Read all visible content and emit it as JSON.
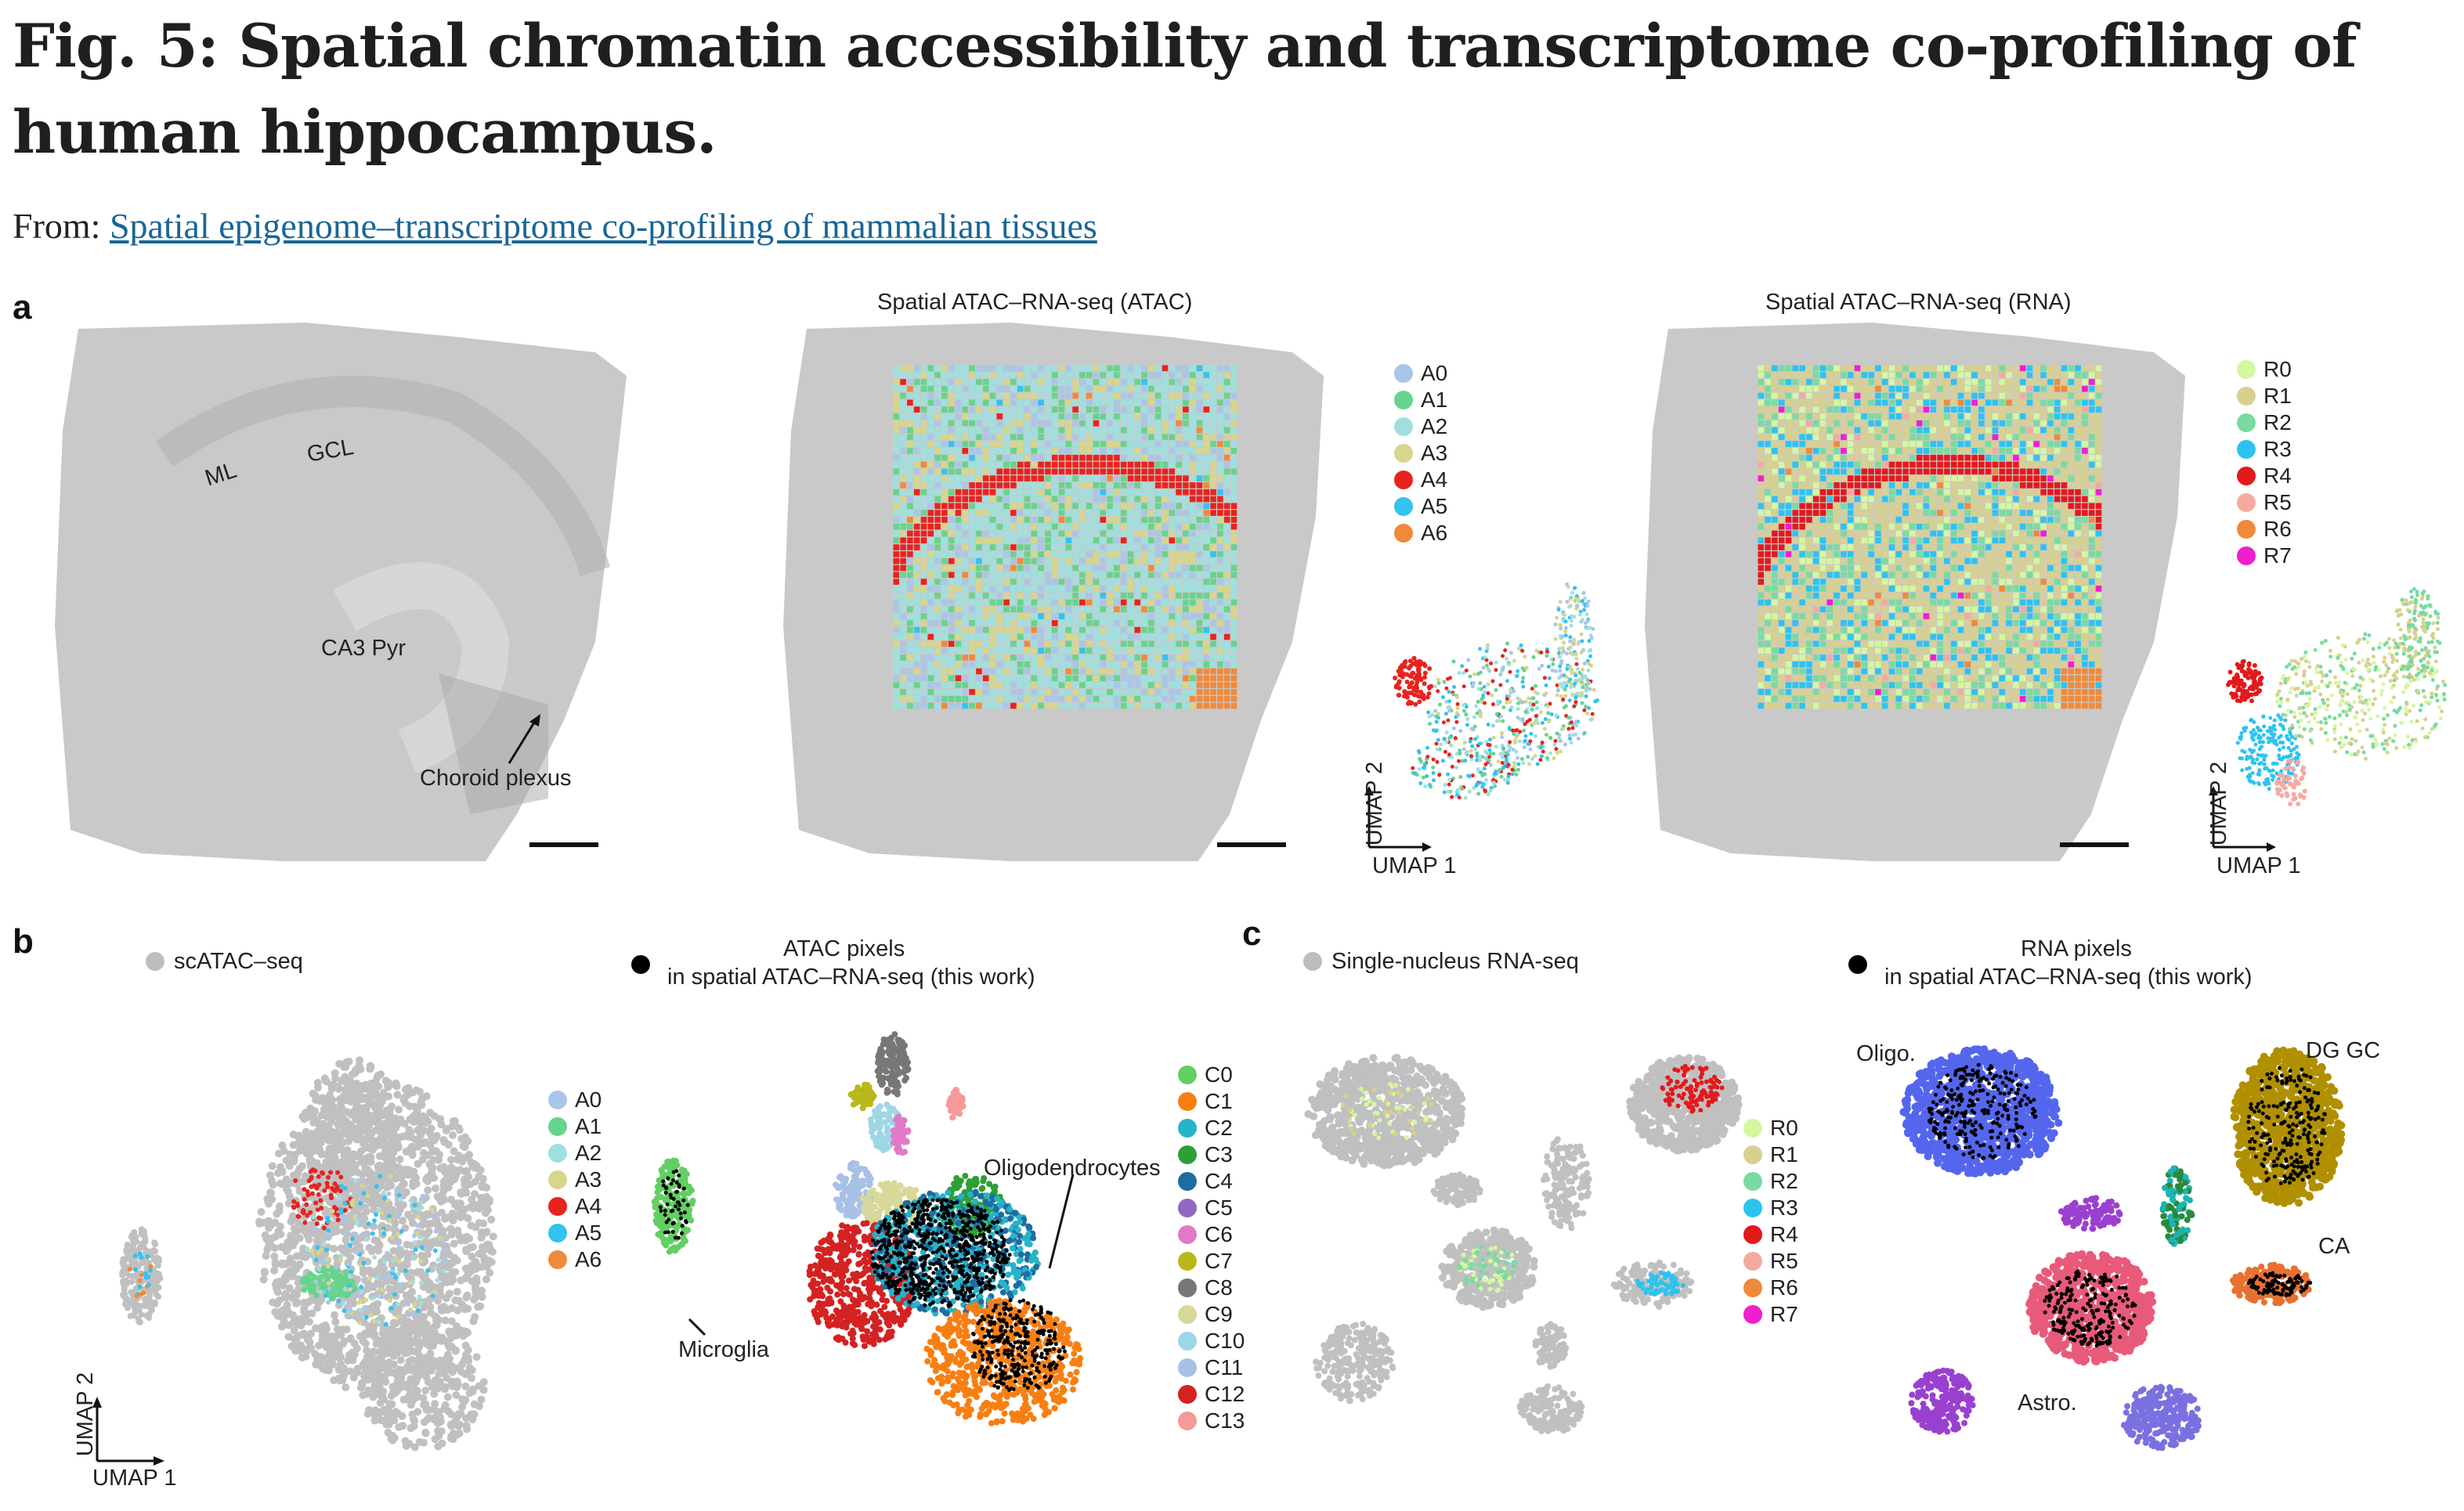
{
  "title": "Fig. 5: Spatial chromatin accessibility and transcriptome co-profiling of human hippocampus.",
  "from_label": "From:",
  "from_link": "Spatial epigenome–transcriptome co-profiling of mammalian tissues",
  "panels": {
    "a": {
      "label": "a",
      "tissue_labels": {
        "ml": "ML",
        "gcl": "GCL",
        "ca3": "CA3 Pyr",
        "choroid": "Choroid plexus"
      },
      "atac_title": "Spatial ATAC–RNA-seq (ATAC)",
      "rna_title": "Spatial ATAC–RNA-seq (RNA)",
      "atac_legend": [
        {
          "label": "A0",
          "color": "#a9c6e8"
        },
        {
          "label": "A1",
          "color": "#66d48c"
        },
        {
          "label": "A2",
          "color": "#9fe0de"
        },
        {
          "label": "A3",
          "color": "#d7d68a"
        },
        {
          "label": "A4",
          "color": "#e8231e"
        },
        {
          "label": "A5",
          "color": "#33c3ef"
        },
        {
          "label": "A6",
          "color": "#f08a3a"
        }
      ],
      "rna_legend": [
        {
          "label": "R0",
          "color": "#d4f7a0"
        },
        {
          "label": "R1",
          "color": "#d8d08e"
        },
        {
          "label": "R2",
          "color": "#78dba0"
        },
        {
          "label": "R3",
          "color": "#2dc3ef"
        },
        {
          "label": "R4",
          "color": "#e3191c"
        },
        {
          "label": "R5",
          "color": "#f4aaa0"
        },
        {
          "label": "R6",
          "color": "#f08a3a"
        },
        {
          "label": "R7",
          "color": "#ef1fcf"
        }
      ],
      "umap_x": "UMAP 1",
      "umap_y": "UMAP 2"
    },
    "b": {
      "label": "b",
      "sc_title": "scATAC–seq",
      "pix_title_1": "ATAC pixels",
      "pix_title_2": "in spatial ATAC–RNA-seq (this work)",
      "legend": [
        {
          "label": "A0",
          "color": "#a9c6e8"
        },
        {
          "label": "A1",
          "color": "#66d48c"
        },
        {
          "label": "A2",
          "color": "#9fe0de"
        },
        {
          "label": "A3",
          "color": "#d7d68a"
        },
        {
          "label": "A4",
          "color": "#e8231e"
        },
        {
          "label": "A5",
          "color": "#33c3ef"
        },
        {
          "label": "A6",
          "color": "#f08a3a"
        }
      ],
      "clusters": [
        {
          "label": "C0",
          "color": "#62cf62"
        },
        {
          "label": "C1",
          "color": "#f77f12"
        },
        {
          "label": "C2",
          "color": "#27b3c8"
        },
        {
          "label": "C3",
          "color": "#2e9e37"
        },
        {
          "label": "C4",
          "color": "#1f6da0"
        },
        {
          "label": "C5",
          "color": "#9068c0"
        },
        {
          "label": "C6",
          "color": "#e07ac8"
        },
        {
          "label": "C7",
          "color": "#b8b81c"
        },
        {
          "label": "C8",
          "color": "#777777"
        },
        {
          "label": "C9",
          "color": "#d8d89a"
        },
        {
          "label": "C10",
          "color": "#9fd6e6"
        },
        {
          "label": "C11",
          "color": "#a9c0e6"
        },
        {
          "label": "C12",
          "color": "#d42222"
        },
        {
          "label": "C13",
          "color": "#f49a98"
        }
      ],
      "microglia": "Microglia",
      "oligodendrocytes": "Oligodendrocytes",
      "umap_x": "UMAP 1",
      "umap_y": "UMAP 2"
    },
    "c": {
      "label": "c",
      "sn_title": "Single-nucleus RNA-seq",
      "pix_title_1": "RNA pixels",
      "pix_title_2": "in spatial ATAC–RNA-seq (this work)",
      "legend": [
        {
          "label": "R0",
          "color": "#d4f7a0"
        },
        {
          "label": "R1",
          "color": "#d8d08e"
        },
        {
          "label": "R2",
          "color": "#78dba0"
        },
        {
          "label": "R3",
          "color": "#2dc3ef"
        },
        {
          "label": "R4",
          "color": "#e3191c"
        },
        {
          "label": "R5",
          "color": "#f4aaa0"
        },
        {
          "label": "R6",
          "color": "#f08a3a"
        },
        {
          "label": "R7",
          "color": "#ef1fcf"
        }
      ],
      "oligo": "Oligo.",
      "dggc": "DG GC",
      "ca": "CA",
      "astro": "Astro."
    }
  }
}
